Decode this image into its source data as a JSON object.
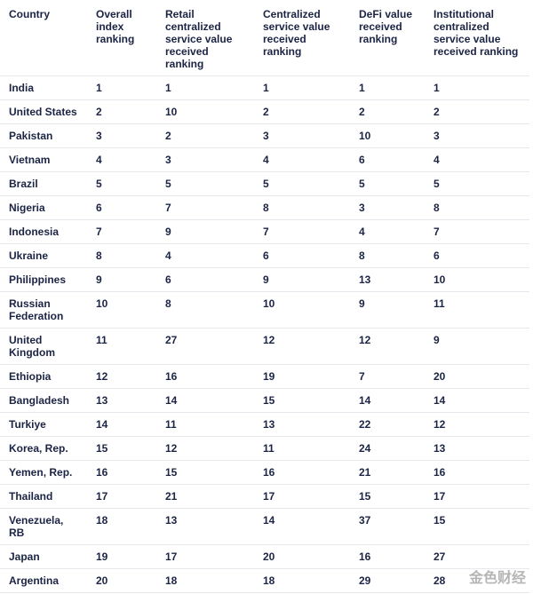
{
  "table": {
    "header": [
      "Country",
      "Overall index ranking",
      "Retail centralized service value received ranking",
      "Centralized service value received ranking",
      "DeFi value received ranking",
      "Institutional centralized service value received ranking"
    ],
    "rows": [
      [
        "India",
        1,
        1,
        1,
        1,
        1
      ],
      [
        "United States",
        2,
        10,
        2,
        2,
        2
      ],
      [
        "Pakistan",
        3,
        2,
        3,
        10,
        3
      ],
      [
        "Vietnam",
        4,
        3,
        4,
        6,
        4
      ],
      [
        "Brazil",
        5,
        5,
        5,
        5,
        5
      ],
      [
        "Nigeria",
        6,
        7,
        8,
        3,
        8
      ],
      [
        "Indonesia",
        7,
        9,
        7,
        4,
        7
      ],
      [
        "Ukraine",
        8,
        4,
        6,
        8,
        6
      ],
      [
        "Philippines",
        9,
        6,
        9,
        13,
        10
      ],
      [
        "Russian Federation",
        10,
        8,
        10,
        9,
        11
      ],
      [
        "United Kingdom",
        11,
        27,
        12,
        12,
        9
      ],
      [
        "Ethiopia",
        12,
        16,
        19,
        7,
        20
      ],
      [
        "Bangladesh",
        13,
        14,
        15,
        14,
        14
      ],
      [
        "Turkiye",
        14,
        11,
        13,
        22,
        12
      ],
      [
        "Korea, Rep.",
        15,
        12,
        11,
        24,
        13
      ],
      [
        "Yemen, Rep.",
        16,
        15,
        16,
        21,
        16
      ],
      [
        "Thailand",
        17,
        21,
        17,
        15,
        17
      ],
      [
        "Venezuela, RB",
        18,
        13,
        14,
        37,
        15
      ],
      [
        "Japan",
        19,
        17,
        20,
        16,
        27
      ],
      [
        "Argentina",
        20,
        18,
        18,
        29,
        28
      ]
    ]
  },
  "watermark": "金色财经"
}
